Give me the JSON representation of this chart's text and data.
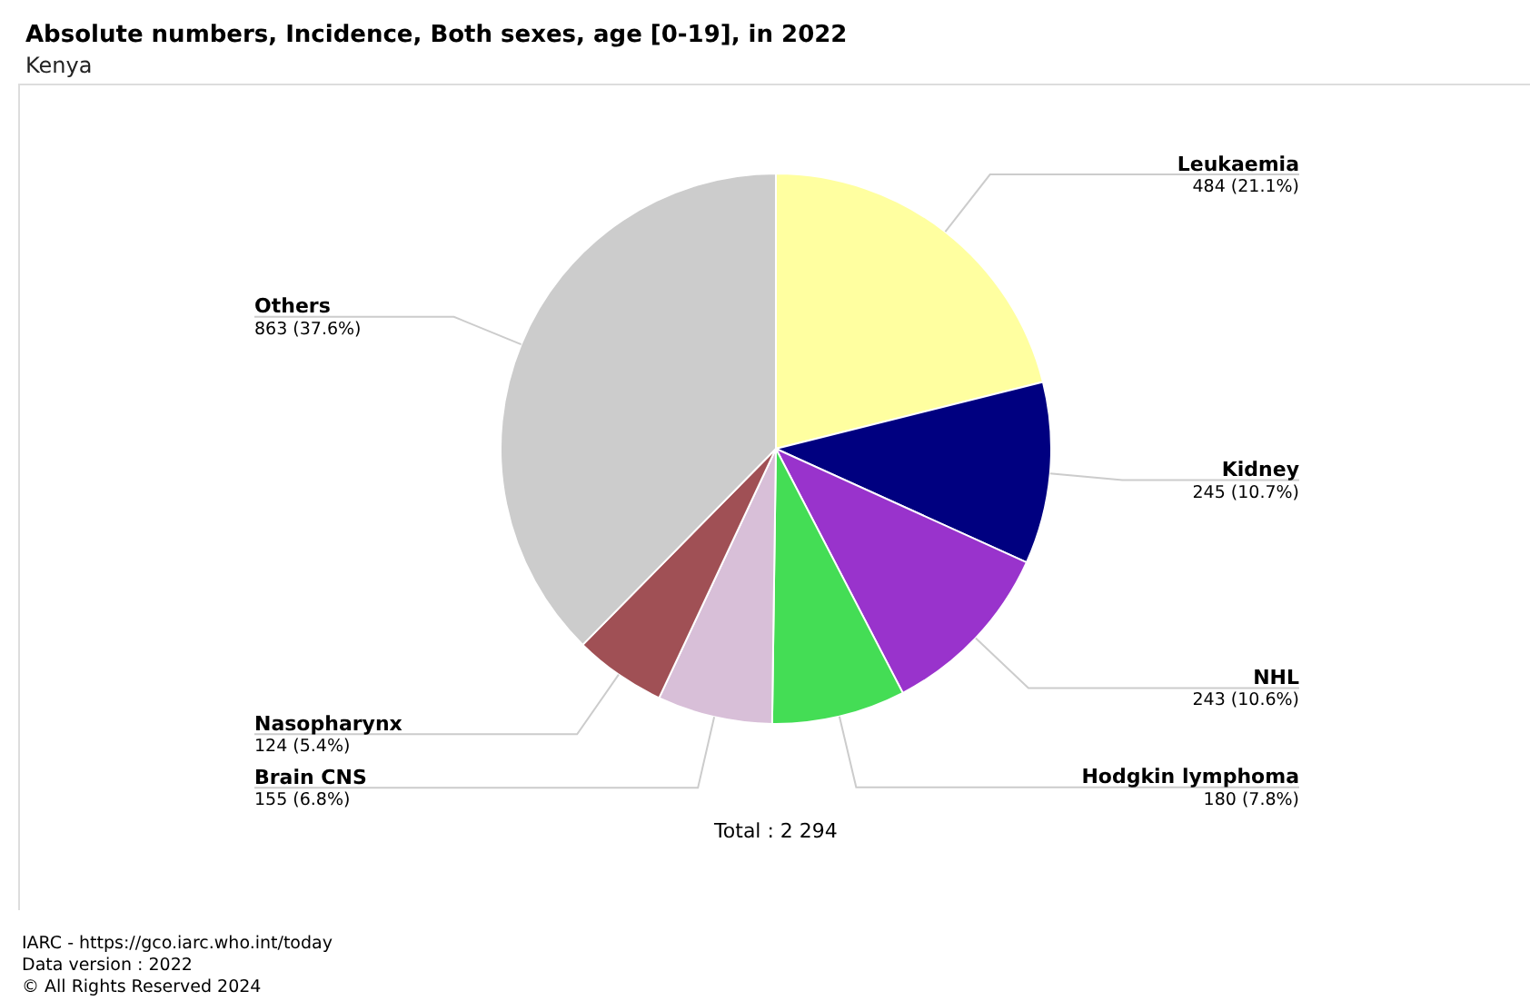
{
  "chart_data": {
    "type": "pie",
    "title": "Absolute numbers, Incidence, Both sexes, age [0-19], in 2022",
    "subtitle": "Kenya",
    "categories": [
      "Leukaemia",
      "Kidney",
      "NHL",
      "Hodgkin lymphoma",
      "Brain CNS",
      "Nasopharynx",
      "Others"
    ],
    "values": [
      484,
      245,
      243,
      180,
      155,
      124,
      863
    ],
    "colors": [
      "#ffffa0",
      "#000080",
      "#9933cc",
      "#44dd55",
      "#d8bfd8",
      "#a05055",
      "#cccccc"
    ],
    "value_labels": [
      "484 (21.1%)",
      "245 (10.7%)",
      "243 (10.6%)",
      "180 (7.8%)",
      "155 (6.8%)",
      "124 (5.4%)",
      "863 (37.6%)"
    ],
    "legend": false,
    "annotations": [
      "Total : 2 294",
      "IARC - https://gco.iarc.who.int/today",
      "Data version : 2022",
      "© All Rights Reserved 2024"
    ]
  }
}
